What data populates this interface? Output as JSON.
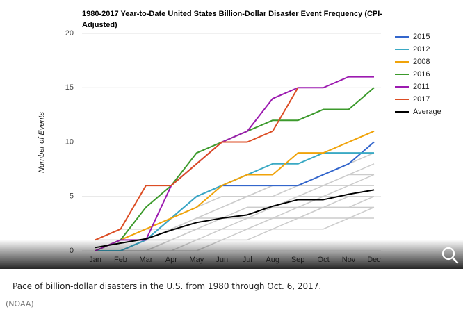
{
  "chart_data": {
    "type": "line",
    "title": "1980-2017 Year-to-Date United States Billion-Dollar Disaster Event Frequency (CPI-Adjusted)",
    "y_label": "Number of Events",
    "categories": [
      "Jan",
      "Feb",
      "Mar",
      "Apr",
      "May",
      "Jun",
      "Jul",
      "Aug",
      "Sep",
      "Oct",
      "Nov",
      "Dec"
    ],
    "ylim": [
      0,
      20
    ],
    "yticks": [
      0,
      5,
      10,
      15,
      20
    ],
    "grid": true,
    "legend": "right",
    "series": [
      {
        "color": "#cccccc",
        "values": [
          0,
          0,
          0,
          1,
          1,
          2,
          2,
          3,
          3,
          4,
          4,
          5
        ]
      },
      {
        "color": "#cccccc",
        "values": [
          0,
          0,
          1,
          1,
          2,
          3,
          3,
          4,
          5,
          5,
          6,
          7
        ]
      },
      {
        "color": "#cccccc",
        "values": [
          0,
          1,
          1,
          2,
          3,
          4,
          5,
          6,
          6,
          7,
          8,
          9
        ]
      },
      {
        "color": "#cccccc",
        "values": [
          0,
          0,
          0,
          0,
          1,
          1,
          2,
          2,
          3,
          3,
          3,
          4
        ]
      },
      {
        "color": "#cccccc",
        "values": [
          1,
          1,
          2,
          2,
          3,
          4,
          5,
          6,
          6,
          6,
          7,
          8
        ]
      },
      {
        "color": "#cccccc",
        "values": [
          0,
          1,
          2,
          3,
          4,
          5,
          5,
          5,
          6,
          6,
          7,
          7
        ]
      },
      {
        "color": "#cccccc",
        "values": [
          0,
          0,
          1,
          2,
          2,
          3,
          4,
          4,
          5,
          6,
          6,
          6
        ]
      },
      {
        "color": "#cccccc",
        "values": [
          0,
          0,
          0,
          1,
          2,
          2,
          2,
          3,
          4,
          4,
          5,
          5
        ]
      },
      {
        "color": "#cccccc",
        "values": [
          1,
          2,
          2,
          2,
          3,
          3,
          4,
          4,
          4,
          5,
          5,
          5
        ]
      },
      {
        "color": "#cccccc",
        "values": [
          0,
          0,
          0,
          0,
          0,
          1,
          1,
          2,
          2,
          2,
          3,
          3
        ]
      },
      {
        "color": "#cccccc",
        "values": [
          0,
          1,
          1,
          1,
          2,
          2,
          3,
          3,
          3,
          4,
          4,
          4
        ]
      },
      {
        "name": "2015",
        "color": "#3366cc",
        "values": [
          0,
          0,
          1,
          3,
          5,
          6,
          6,
          6,
          6,
          7,
          8,
          10
        ]
      },
      {
        "name": "2012",
        "color": "#3aa9c4",
        "values": [
          0,
          0,
          1,
          3,
          5,
          6,
          7,
          8,
          8,
          9,
          9,
          9
        ]
      },
      {
        "name": "2008",
        "color": "#f0a30a",
        "values": [
          0,
          1,
          2,
          3,
          4,
          6,
          7,
          7,
          9,
          9,
          10,
          11
        ]
      },
      {
        "name": "2016",
        "color": "#3c9a2c",
        "values": [
          0,
          1,
          4,
          6,
          9,
          10,
          11,
          12,
          12,
          13,
          13,
          15
        ]
      },
      {
        "name": "2011",
        "color": "#9c1ab0",
        "values": [
          0,
          1,
          1,
          6,
          8,
          10,
          11,
          14,
          15,
          15,
          16,
          16
        ]
      },
      {
        "name": "2017",
        "color": "#dc4d24",
        "values": [
          1,
          2,
          6,
          6,
          8,
          10,
          10,
          11,
          15,
          null,
          null,
          null
        ]
      },
      {
        "name": "Average",
        "color": "#000000",
        "values": [
          0.3,
          0.7,
          1.1,
          1.9,
          2.6,
          3.0,
          3.3,
          4.1,
          4.7,
          4.7,
          5.2,
          5.6
        ]
      }
    ]
  },
  "caption": "Pace of billion-dollar disasters in the U.S. from 1980 through Oct. 6, 2017.",
  "credit": "(NOAA)"
}
